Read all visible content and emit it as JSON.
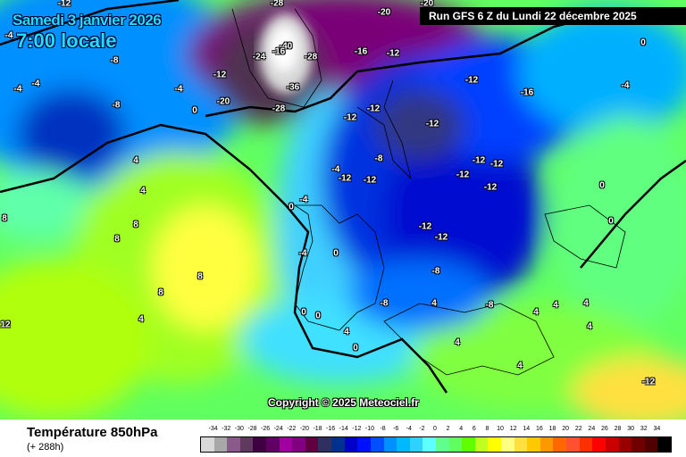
{
  "header": {
    "date": "Samedi 3 janvier 2026",
    "time": "7:00 locale",
    "run": "Run GFS 6 Z du Lundi 22 décembre 2025"
  },
  "copyright": "Copyright © 2025 Meteociel.fr",
  "footer": {
    "title": "Température 850hPa",
    "lead": "(+ 288h)"
  },
  "legend": {
    "labels": [
      "-34",
      "-32",
      "-30",
      "-28",
      "-26",
      "-24",
      "-22",
      "-20",
      "-18",
      "-16",
      "-14",
      "-12",
      "-10",
      "-8",
      "-6",
      "-4",
      "-2",
      "0",
      "2",
      "4",
      "6",
      "8",
      "10",
      "12",
      "14",
      "16",
      "18",
      "20",
      "22",
      "24",
      "26",
      "28",
      "30",
      "32",
      "34"
    ],
    "colors": [
      "#d8d8d8",
      "#a8a8a8",
      "#8a5a8a",
      "#5e3a5e",
      "#3e0040",
      "#600060",
      "#a000a0",
      "#800080",
      "#600040",
      "#303060",
      "#003090",
      "#0000c8",
      "#0010ff",
      "#0050ff",
      "#0090ff",
      "#00b8ff",
      "#30d0ff",
      "#60ffff",
      "#60ff90",
      "#60ff60",
      "#60ff00",
      "#c0ff20",
      "#ffff00",
      "#ffff80",
      "#ffe040",
      "#ffc800",
      "#ff9800",
      "#ff6800",
      "#ff5030",
      "#ff3000",
      "#ff0000",
      "#c80000",
      "#980000",
      "#700000",
      "#500000",
      "#000000"
    ]
  },
  "map_labels": [
    "-12",
    "-28",
    "-20",
    "-20",
    "-4",
    "-4",
    "-8",
    "-8",
    "-4",
    "-4",
    "-12",
    "0",
    "-20",
    "-40",
    "-24",
    "-16",
    "-28",
    "-36",
    "-28",
    "-16",
    "-12",
    "-12",
    "-12",
    "-12",
    "-16",
    "-12",
    "-12",
    "-12",
    "-12",
    "-12",
    "-12",
    "-12",
    "-12",
    "-8",
    "-12",
    "-8",
    "-8",
    "-8",
    "-4",
    "-4",
    "-4",
    "4",
    "4",
    "8",
    "8",
    "8",
    "8",
    "8",
    "4",
    "0",
    "0",
    "0",
    "0",
    "0",
    "4",
    "4",
    "4",
    "4",
    "4",
    "4",
    "4",
    "4",
    "0",
    "0",
    "-12",
    "12",
    "0",
    "-4"
  ]
}
